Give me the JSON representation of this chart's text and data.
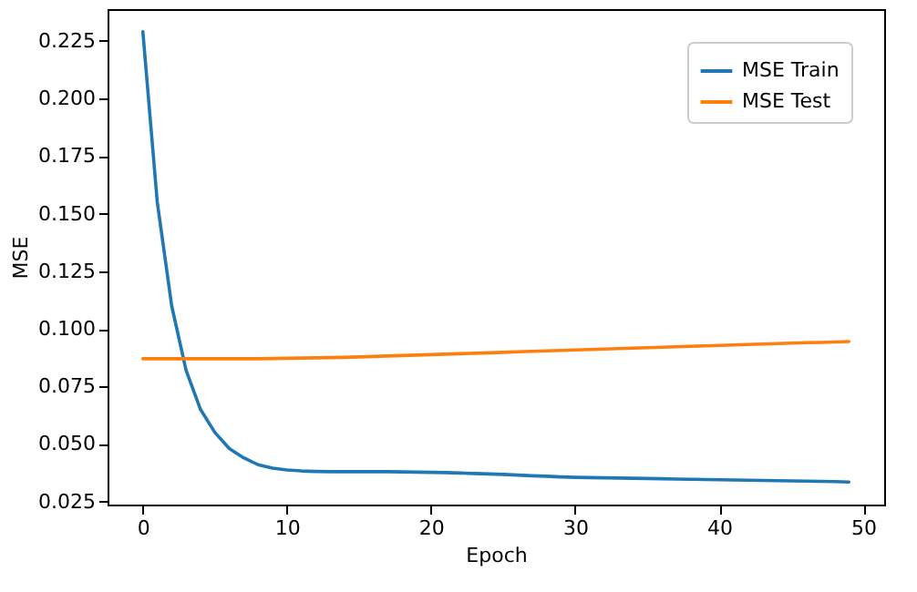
{
  "chart_data": {
    "type": "line",
    "xlabel": "Epoch",
    "ylabel": "MSE",
    "x": [
      0,
      1,
      2,
      3,
      4,
      5,
      6,
      7,
      8,
      9,
      10,
      11,
      12,
      13,
      14,
      15,
      16,
      17,
      18,
      19,
      20,
      21,
      22,
      23,
      24,
      25,
      26,
      27,
      28,
      29,
      30,
      31,
      32,
      33,
      34,
      35,
      36,
      37,
      38,
      39,
      40,
      41,
      42,
      43,
      44,
      45,
      46,
      47,
      48,
      49
    ],
    "series": [
      {
        "name": "MSE Train",
        "color": "#1f77b4",
        "values": [
          0.229,
          0.155,
          0.11,
          0.082,
          0.065,
          0.055,
          0.048,
          0.044,
          0.041,
          0.0395,
          0.0387,
          0.0383,
          0.0381,
          0.038,
          0.038,
          0.038,
          0.038,
          0.038,
          0.0379,
          0.0378,
          0.0377,
          0.0376,
          0.0374,
          0.0372,
          0.037,
          0.0368,
          0.0365,
          0.0362,
          0.036,
          0.0357,
          0.0355,
          0.0354,
          0.0353,
          0.0352,
          0.0351,
          0.035,
          0.0349,
          0.0348,
          0.0347,
          0.0346,
          0.0345,
          0.0344,
          0.0343,
          0.0342,
          0.0341,
          0.034,
          0.0339,
          0.0338,
          0.0337,
          0.0335
        ]
      },
      {
        "name": "MSE Test",
        "color": "#ff7f0e",
        "values": [
          0.087,
          0.087,
          0.087,
          0.087,
          0.087,
          0.087,
          0.087,
          0.087,
          0.087,
          0.0871,
          0.0872,
          0.0873,
          0.0874,
          0.0875,
          0.0876,
          0.0878,
          0.088,
          0.0882,
          0.0884,
          0.0886,
          0.0888,
          0.089,
          0.0892,
          0.0894,
          0.0896,
          0.0898,
          0.09,
          0.0902,
          0.0904,
          0.0906,
          0.0908,
          0.091,
          0.0912,
          0.0914,
          0.0916,
          0.0918,
          0.092,
          0.0922,
          0.0924,
          0.0926,
          0.0928,
          0.093,
          0.0932,
          0.0934,
          0.0936,
          0.0938,
          0.094,
          0.0941,
          0.0943,
          0.0945
        ]
      }
    ],
    "xlim": [
      -2.45,
      51.45
    ],
    "xticks": [
      0,
      10,
      20,
      30,
      40,
      50
    ],
    "ylim": [
      0.0237,
      0.2388
    ],
    "yticks": [
      {
        "value": 0.025,
        "label": "0.025"
      },
      {
        "value": 0.05,
        "label": "0.050"
      },
      {
        "value": 0.075,
        "label": "0.075"
      },
      {
        "value": 0.1,
        "label": "0.100"
      },
      {
        "value": 0.125,
        "label": "0.125"
      },
      {
        "value": 0.15,
        "label": "0.150"
      },
      {
        "value": 0.175,
        "label": "0.175"
      },
      {
        "value": 0.2,
        "label": "0.200"
      },
      {
        "value": 0.225,
        "label": "0.225"
      }
    ],
    "grid": false,
    "legend": "top right"
  }
}
